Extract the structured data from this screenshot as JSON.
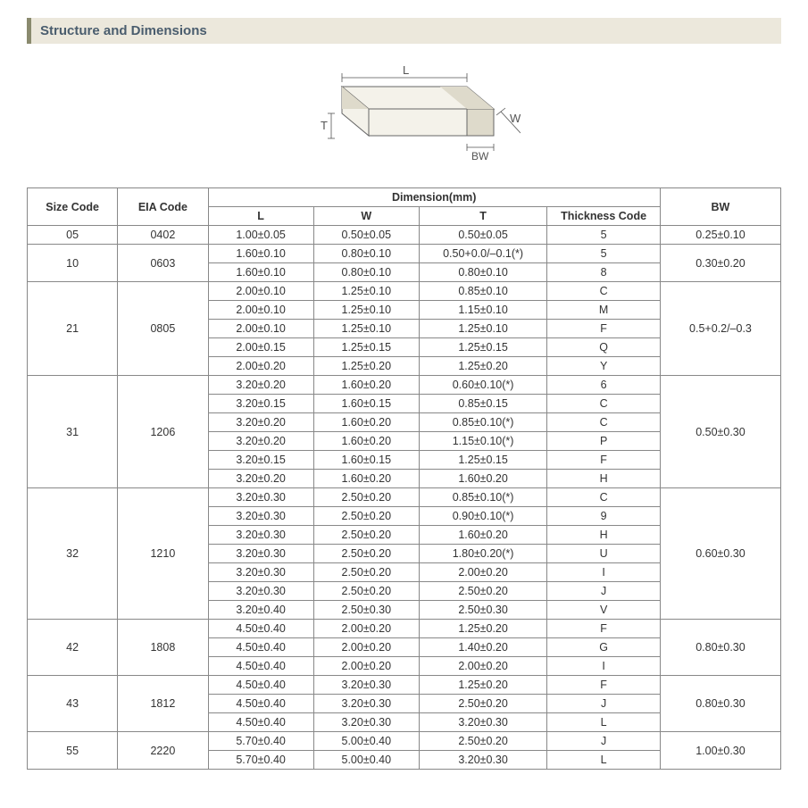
{
  "section_title": "Structure and Dimensions",
  "diagram_labels": {
    "L": "L",
    "W": "W",
    "T": "T",
    "BW": "BW"
  },
  "diagram": {
    "stroke": "#666666",
    "fill": "#f4f2ea",
    "label_color": "#555555"
  },
  "table": {
    "header_group": "Dimension(mm)",
    "columns": [
      "Size Code",
      "EIA Code",
      "L",
      "W",
      "T",
      "Thickness  Code",
      "BW"
    ],
    "groups": [
      {
        "size": "05",
        "eia": "0402",
        "bw": "0.25±0.10",
        "rows": [
          {
            "L": "1.00±0.05",
            "W": "0.50±0.05",
            "T": "0.50±0.05",
            "TC": "5"
          }
        ]
      },
      {
        "size": "10",
        "eia": "0603",
        "bw": "0.30±0.20",
        "rows": [
          {
            "L": "1.60±0.10",
            "W": "0.80±0.10",
            "T": "0.50+0.0/–0.1(*)",
            "TC": "5"
          },
          {
            "L": "1.60±0.10",
            "W": "0.80±0.10",
            "T": "0.80±0.10",
            "TC": "8"
          }
        ]
      },
      {
        "size": "21",
        "eia": "0805",
        "bw": "0.5+0.2/–0.3",
        "rows": [
          {
            "L": "2.00±0.10",
            "W": "1.25±0.10",
            "T": "0.85±0.10",
            "TC": "C"
          },
          {
            "L": "2.00±0.10",
            "W": "1.25±0.10",
            "T": "1.15±0.10",
            "TC": "M"
          },
          {
            "L": "2.00±0.10",
            "W": "1.25±0.10",
            "T": "1.25±0.10",
            "TC": "F"
          },
          {
            "L": "2.00±0.15",
            "W": "1.25±0.15",
            "T": "1.25±0.15",
            "TC": "Q"
          },
          {
            "L": "2.00±0.20",
            "W": "1.25±0.20",
            "T": "1.25±0.20",
            "TC": "Y"
          }
        ]
      },
      {
        "size": "31",
        "eia": "1206",
        "bw": "0.50±0.30",
        "rows": [
          {
            "L": "3.20±0.20",
            "W": "1.60±0.20",
            "T": "0.60±0.10(*)",
            "TC": "6"
          },
          {
            "L": "3.20±0.15",
            "W": "1.60±0.15",
            "T": "0.85±0.15",
            "TC": "C"
          },
          {
            "L": "3.20±0.20",
            "W": "1.60±0.20",
            "T": "0.85±0.10(*)",
            "TC": "C"
          },
          {
            "L": "3.20±0.20",
            "W": "1.60±0.20",
            "T": "1.15±0.10(*)",
            "TC": "P"
          },
          {
            "L": "3.20±0.15",
            "W": "1.60±0.15",
            "T": "1.25±0.15",
            "TC": "F"
          },
          {
            "L": "3.20±0.20",
            "W": "1.60±0.20",
            "T": "1.60±0.20",
            "TC": "H"
          }
        ]
      },
      {
        "size": "32",
        "eia": "1210",
        "bw": "0.60±0.30",
        "rows": [
          {
            "L": "3.20±0.30",
            "W": "2.50±0.20",
            "T": "0.85±0.10(*)",
            "TC": "C"
          },
          {
            "L": "3.20±0.30",
            "W": "2.50±0.20",
            "T": "0.90±0.10(*)",
            "TC": "9"
          },
          {
            "L": "3.20±0.30",
            "W": "2.50±0.20",
            "T": "1.60±0.20",
            "TC": "H"
          },
          {
            "L": "3.20±0.30",
            "W": "2.50±0.20",
            "T": "1.80±0.20(*)",
            "TC": "U"
          },
          {
            "L": "3.20±0.30",
            "W": "2.50±0.20",
            "T": "2.00±0.20",
            "TC": "I"
          },
          {
            "L": "3.20±0.30",
            "W": "2.50±0.20",
            "T": "2.50±0.20",
            "TC": "J"
          },
          {
            "L": "3.20±0.40",
            "W": "2.50±0.30",
            "T": "2.50±0.30",
            "TC": "V"
          }
        ]
      },
      {
        "size": "42",
        "eia": "1808",
        "bw": "0.80±0.30",
        "rows": [
          {
            "L": "4.50±0.40",
            "W": "2.00±0.20",
            "T": "1.25±0.20",
            "TC": "F"
          },
          {
            "L": "4.50±0.40",
            "W": "2.00±0.20",
            "T": "1.40±0.20",
            "TC": "G"
          },
          {
            "L": "4.50±0.40",
            "W": "2.00±0.20",
            "T": "2.00±0.20",
            "TC": "I"
          }
        ]
      },
      {
        "size": "43",
        "eia": "1812",
        "bw": "0.80±0.30",
        "rows": [
          {
            "L": "4.50±0.40",
            "W": "3.20±0.30",
            "T": "1.25±0.20",
            "TC": "F"
          },
          {
            "L": "4.50±0.40",
            "W": "3.20±0.30",
            "T": "2.50±0.20",
            "TC": "J"
          },
          {
            "L": "4.50±0.40",
            "W": "3.20±0.30",
            "T": "3.20±0.30",
            "TC": "L"
          }
        ]
      },
      {
        "size": "55",
        "eia": "2220",
        "bw": "1.00±0.30",
        "rows": [
          {
            "L": "5.70±0.40",
            "W": "5.00±0.40",
            "T": "2.50±0.20",
            "TC": "J"
          },
          {
            "L": "5.70±0.40",
            "W": "5.00±0.40",
            "T": "3.20±0.30",
            "TC": "L"
          }
        ]
      }
    ]
  }
}
